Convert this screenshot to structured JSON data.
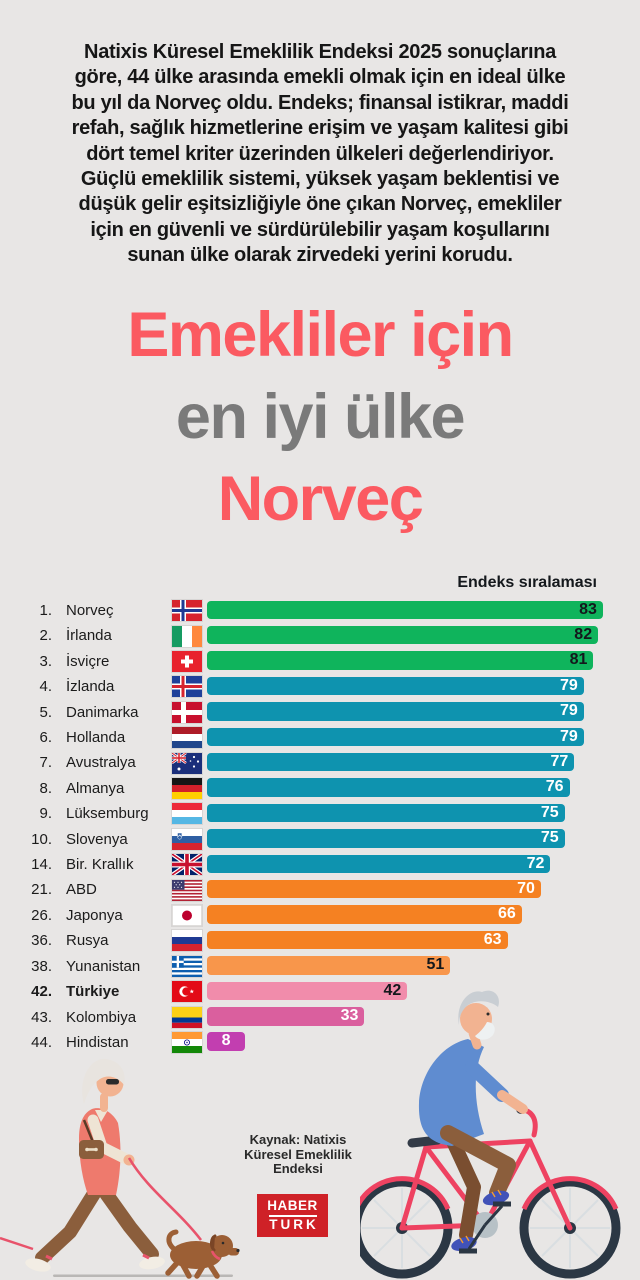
{
  "page": {
    "background": "#e8e6e5"
  },
  "intro": {
    "lines": [
      "Natixis Küresel Emeklilik Endeksi 2025 sonuçlarına",
      "göre, 44 ülke arasında emekli olmak için en ideal ülke",
      "bu yıl da Norveç oldu. Endeks; finansal istikrar, maddi",
      "refah, sağlık hizmetlerine erişim ve yaşam kalitesi gibi",
      "dört temel kriter üzerinden ülkeleri değerlendiriyor.",
      "Güçlü emeklilik sistemi, yüksek yaşam beklentisi ve",
      "düşük gelir eşitsizliğiyle öne çıkan Norveç, emekliler",
      "için en güvenli ve sürdürülebilir yaşam koşullarını",
      "sunan ülke olarak zirvedeki yerini korudu."
    ]
  },
  "title": {
    "lines": [
      {
        "text": "Emekliler için",
        "color": "#fb5a61"
      },
      {
        "text": "en iyi ülke",
        "color": "#7a7a7a"
      },
      {
        "text": "Norveç",
        "color": "#fb5a61"
      }
    ]
  },
  "chart_data": {
    "type": "bar",
    "orientation": "horizontal",
    "title": "Endeks sıralaması",
    "xlim": [
      0,
      83
    ],
    "grid": false,
    "categories": [
      "Norveç",
      "İrlanda",
      "İsviçre",
      "İzlanda",
      "Danimarka",
      "Hollanda",
      "Avustralya",
      "Almanya",
      "Lüksemburg",
      "Slovenya",
      "Bir. Krallık",
      "ABD",
      "Japonya",
      "Rusya",
      "Yunanistan",
      "Türkiye",
      "Kolombiya",
      "Hindistan"
    ],
    "ranks": [
      "1.",
      "2.",
      "3.",
      "4.",
      "5.",
      "6.",
      "7.",
      "8.",
      "9.",
      "10.",
      "14.",
      "21.",
      "26.",
      "36.",
      "38.",
      "42.",
      "43.",
      "44."
    ],
    "values": [
      83,
      82,
      81,
      79,
      79,
      79,
      77,
      76,
      75,
      75,
      72,
      70,
      66,
      63,
      51,
      42,
      33,
      8
    ],
    "flags": [
      "norway",
      "ireland",
      "switzerland",
      "iceland",
      "denmark",
      "netherlands",
      "australia",
      "germany",
      "luxembourg",
      "slovenia",
      "uk",
      "usa",
      "japan",
      "russia",
      "greece",
      "turkey",
      "colombia",
      "india"
    ],
    "bar_colors": [
      "#0fb45c",
      "#0fb45c",
      "#0fb45c",
      "#0e93af",
      "#0e93af",
      "#0e93af",
      "#0e93af",
      "#0e93af",
      "#0e93af",
      "#0e93af",
      "#0e93af",
      "#f58122",
      "#f58122",
      "#f58122",
      "#f8964b",
      "#f18cab",
      "#da5f9e",
      "#c23eb0"
    ],
    "value_text_colors": [
      "#14181c",
      "#14181c",
      "#14181c",
      "#ffffff",
      "#ffffff",
      "#ffffff",
      "#ffffff",
      "#ffffff",
      "#ffffff",
      "#ffffff",
      "#ffffff",
      "#ffffff",
      "#ffffff",
      "#ffffff",
      "#14181c",
      "#14181c",
      "#ffffff",
      "#ffffff"
    ],
    "highlight_category": "Türkiye"
  },
  "source": {
    "lines": [
      "Kaynak: Natixis",
      "Küresel Emeklilik",
      "Endeksi"
    ]
  },
  "logo": {
    "top": "HABER",
    "bottom": "TURK",
    "background": "#cf2127"
  },
  "illustrations": {
    "left": "elderly-woman-walking-dog",
    "right": "elderly-man-on-bicycle"
  }
}
